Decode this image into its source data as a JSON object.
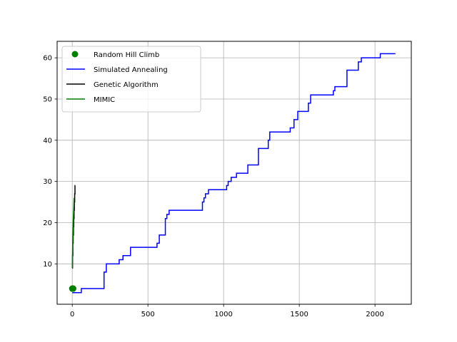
{
  "chart_data": {
    "type": "line",
    "title": "",
    "xlabel": "",
    "ylabel": "",
    "xlim": [
      -100,
      2240
    ],
    "ylim": [
      0.2,
      64
    ],
    "xticks": [
      0,
      500,
      1000,
      1500,
      2000
    ],
    "yticks": [
      10,
      20,
      30,
      40,
      50,
      60
    ],
    "grid": true,
    "legend_position": "top-left",
    "series": [
      {
        "name": "Random Hill Climb",
        "style": "marker",
        "color": "#008000",
        "x": [
          0,
          2,
          4,
          6
        ],
        "y": [
          4,
          4,
          4,
          4
        ]
      },
      {
        "name": "Simulated Annealing",
        "style": "step",
        "color": "#0000ff",
        "x": [
          0,
          60,
          210,
          225,
          310,
          335,
          385,
          560,
          575,
          590,
          615,
          625,
          640,
          860,
          870,
          880,
          900,
          1020,
          1030,
          1050,
          1085,
          1160,
          1230,
          1295,
          1305,
          1440,
          1465,
          1490,
          1560,
          1575,
          1725,
          1735,
          1815,
          1890,
          1910,
          1935,
          2020,
          2035,
          2135
        ],
        "y": [
          3,
          4,
          8,
          10,
          11,
          12,
          14,
          15,
          17,
          17,
          21,
          22,
          23,
          25,
          26,
          27,
          28,
          29,
          30,
          31,
          32,
          34,
          38,
          40,
          42,
          43,
          45,
          47,
          49,
          51,
          52,
          53,
          57,
          59,
          60,
          60,
          60,
          61,
          61
        ]
      },
      {
        "name": "Genetic Algorithm",
        "style": "step",
        "color": "#000000",
        "x": [
          0,
          2,
          4,
          6,
          8,
          10,
          12,
          14,
          16,
          18,
          20
        ],
        "y": [
          9,
          12,
          15,
          17,
          19,
          21,
          23,
          25,
          27,
          29,
          29
        ]
      },
      {
        "name": "MIMIC",
        "style": "line",
        "color": "#008000",
        "x": [
          0,
          2,
          4,
          6,
          8,
          10,
          12
        ],
        "y": [
          9,
          13,
          17,
          20,
          22,
          24,
          26
        ]
      }
    ]
  }
}
